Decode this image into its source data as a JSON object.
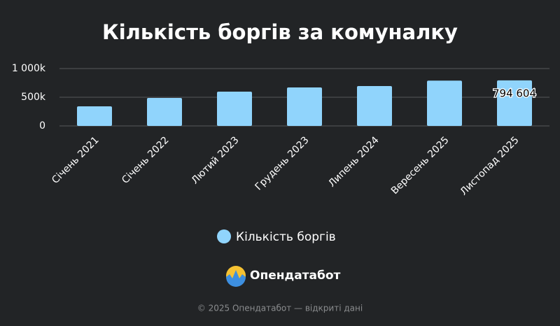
{
  "chart_data": {
    "type": "bar",
    "title": "Кількість боргів за комуналку",
    "categories": [
      "Січень 2021",
      "Січень 2022",
      "Лютий 2023",
      "Грудень 2023",
      "Липень 2024",
      "Вересень 2025",
      "Листопад 2025"
    ],
    "series": [
      {
        "name": "Кількість боргів",
        "color": "#90d4fc",
        "values": [
          341000,
          488000,
          598000,
          671000,
          695000,
          790000,
          794604
        ],
        "value_labels": [
          null,
          null,
          null,
          null,
          null,
          null,
          "794 604"
        ]
      }
    ],
    "ylim": [
      0,
      1000000
    ],
    "yticks": [
      0,
      {
        "value": 500000,
        "label": "500k"
      },
      {
        "value": 1000000,
        "label": "1 000k"
      }
    ],
    "grid": true,
    "legend": "bottom"
  },
  "branding": {
    "logo_text": "Опендатабот",
    "footer": "© 2025 Опендатабот — відкриті дані"
  }
}
